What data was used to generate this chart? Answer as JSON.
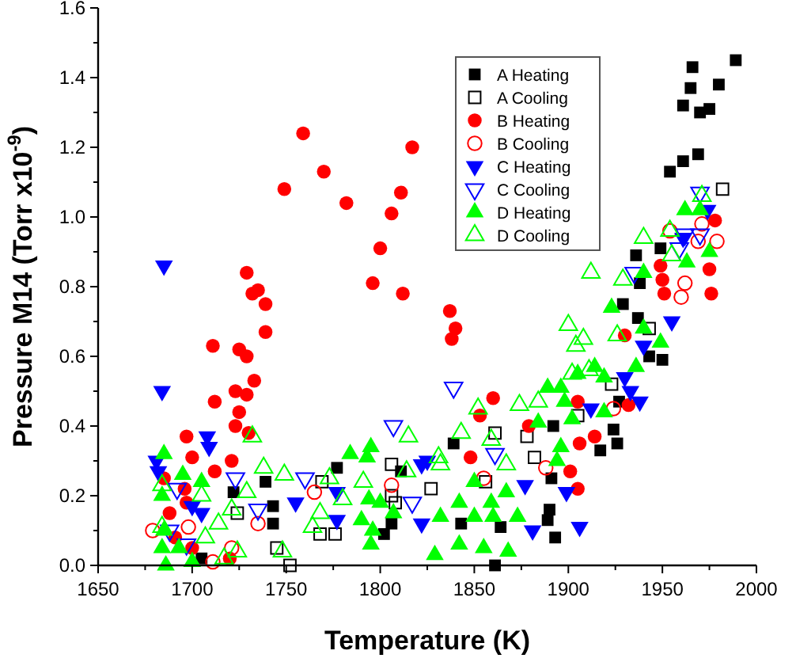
{
  "chart_data": {
    "type": "scatter",
    "xlabel": "Temperature (K)",
    "ylabel": "Pressure M14 (Torr x10$^{-9}$)",
    "xlim": [
      1650,
      2000
    ],
    "xticks": [
      1650,
      1700,
      1750,
      1800,
      1850,
      1900,
      1950,
      2000
    ],
    "ylim": [
      0,
      1.6
    ],
    "yticks": [
      {
        "value": 0,
        "label": "0.0"
      },
      {
        "value": 0.2,
        "label": "0.2"
      },
      {
        "value": 0.4,
        "label": "0.4"
      },
      {
        "value": 0.6,
        "label": "0.6"
      },
      {
        "value": 0.8,
        "label": "0.8"
      },
      {
        "value": 1.0,
        "label": "1.0"
      },
      {
        "value": 1.2,
        "label": "1.2"
      },
      {
        "value": 1.4,
        "label": "1.4"
      },
      {
        "value": 1.6,
        "label": "1.6"
      }
    ],
    "grid": false,
    "legend": "top right",
    "series": [
      {
        "name": "A Heating",
        "color": "#000000",
        "marker": "square",
        "x": [
          1989,
          1966,
          1980,
          1965,
          1961,
          1970,
          1975,
          1969,
          1961,
          1954,
          1949,
          1936,
          1938,
          1929,
          1937,
          1950,
          1943,
          1927,
          1924,
          1926,
          1917,
          1892,
          1891,
          1890,
          1889,
          1893,
          1861,
          1843,
          1839,
          1864,
          1777,
          1739,
          1722,
          1743,
          1743,
          1802,
          1806,
          1811,
          1705
        ],
        "values": [
          1.45,
          1.43,
          1.38,
          1.37,
          1.32,
          1.3,
          1.31,
          1.18,
          1.16,
          1.13,
          0.91,
          0.89,
          0.81,
          0.75,
          0.71,
          0.59,
          0.6,
          0.47,
          0.39,
          0.35,
          0.33,
          0.4,
          0.25,
          0.16,
          0.13,
          0.08,
          0.0,
          0.12,
          0.35,
          0.11,
          0.28,
          0.24,
          0.21,
          0.17,
          0.12,
          0.09,
          0.12,
          0.27,
          0.02
        ]
      },
      {
        "name": "A Cooling",
        "color": "#000000",
        "marker": "square-open",
        "x": [
          1982,
          1923,
          1943,
          1905,
          1861,
          1878,
          1882,
          1856,
          1827,
          1806,
          1808,
          1769,
          1768,
          1776,
          1724,
          1745,
          1752,
          1806
        ],
        "values": [
          1.08,
          0.52,
          0.68,
          0.43,
          0.38,
          0.37,
          0.31,
          0.24,
          0.22,
          0.29,
          0.18,
          0.24,
          0.09,
          0.09,
          0.15,
          0.05,
          0.0,
          0.2
        ]
      },
      {
        "name": "B Heating",
        "color": "#ff0000",
        "marker": "circle",
        "x": [
          1759,
          1817,
          1770,
          1749,
          1782,
          1811,
          1806,
          1800,
          1729,
          1735,
          1732,
          1739,
          1796,
          1812,
          1739,
          1711,
          1725,
          1729,
          1733,
          1712,
          1723,
          1729,
          1725,
          1723,
          1730,
          1697,
          1700,
          1721,
          1712,
          1696,
          1697,
          1837,
          1840,
          1838,
          1860,
          1853,
          1879,
          1905,
          1906,
          1901,
          1905,
          1848,
          1976,
          1951,
          1932,
          1914,
          1930,
          1978,
          1975,
          1949,
          1950,
          1685,
          1688,
          1691,
          1700,
          1720
        ],
        "values": [
          1.24,
          1.2,
          1.13,
          1.08,
          1.04,
          1.07,
          1.01,
          0.91,
          0.84,
          0.79,
          0.78,
          0.75,
          0.81,
          0.78,
          0.67,
          0.63,
          0.62,
          0.6,
          0.53,
          0.47,
          0.5,
          0.49,
          0.44,
          0.4,
          0.38,
          0.37,
          0.31,
          0.3,
          0.27,
          0.22,
          0.18,
          0.73,
          0.68,
          0.65,
          0.48,
          0.43,
          0.4,
          0.47,
          0.35,
          0.27,
          0.22,
          0.31,
          0.78,
          0.78,
          0.46,
          0.37,
          0.66,
          0.99,
          0.85,
          0.86,
          0.82,
          0.25,
          0.15,
          0.08,
          0.05,
          0.02
        ]
      },
      {
        "name": "B Cooling",
        "color": "#ff0000",
        "marker": "circle-open",
        "x": [
          1971,
          1979,
          1969,
          1962,
          1960,
          1954,
          1924,
          1888,
          1765,
          1735,
          1721,
          1711,
          1806,
          1698,
          1679,
          1855
        ],
        "values": [
          0.98,
          0.93,
          0.93,
          0.81,
          0.77,
          0.96,
          0.45,
          0.28,
          0.21,
          0.12,
          0.05,
          0.01,
          0.23,
          0.11,
          0.1,
          0.25
        ]
      },
      {
        "name": "C Heating",
        "color": "#0000ff",
        "marker": "triangle-down",
        "x": [
          1685,
          1684,
          1708,
          1709,
          1681,
          1682,
          1755,
          1777,
          1777,
          1822,
          1822,
          1705,
          1700,
          1881,
          1906,
          1899,
          1877,
          1938,
          1933,
          1930,
          1955,
          1940,
          1912,
          1825,
          1974,
          1961
        ],
        "values": [
          0.86,
          0.5,
          0.37,
          0.34,
          0.3,
          0.27,
          0.18,
          0.21,
          0.13,
          0.29,
          0.12,
          0.15,
          0.17,
          0.1,
          0.11,
          0.21,
          0.23,
          0.47,
          0.5,
          0.54,
          0.7,
          0.63,
          0.45,
          0.3,
          1.02,
          0.94
        ]
      },
      {
        "name": "C Cooling",
        "color": "#0000ff",
        "marker": "triangle-down-open",
        "x": [
          1839,
          1861,
          1807,
          1723,
          1760,
          1735,
          1817,
          1697,
          1970,
          1970,
          1959,
          1935,
          1962,
          1688,
          1692
        ],
        "values": [
          0.51,
          0.32,
          0.4,
          0.25,
          0.25,
          0.16,
          0.18,
          0.06,
          1.07,
          0.95,
          0.91,
          0.84,
          0.95,
          0.1,
          0.22
        ]
      },
      {
        "name": "D Heating",
        "color": "#00ff00",
        "marker": "triangle",
        "x": [
          1685,
          1784,
          1793,
          1795,
          1695,
          1705,
          1794,
          1800,
          1790,
          1796,
          1795,
          1829,
          1700,
          1693,
          1684,
          1807,
          1842,
          1855,
          1868,
          1832,
          1850,
          1860,
          1873,
          1867,
          1850,
          1842,
          1859,
          1894,
          1896,
          1902,
          1898,
          1896,
          1889,
          1905,
          1914,
          1919,
          1884,
          1923,
          1940,
          1949,
          1936,
          1919,
          1962,
          1970,
          1975,
          1963,
          1940,
          1685,
          1686,
          1684
        ],
        "values": [
          0.32,
          0.32,
          0.31,
          0.34,
          0.26,
          0.24,
          0.19,
          0.18,
          0.13,
          0.1,
          0.06,
          0.03,
          0.01,
          0.05,
          0.2,
          0.15,
          0.06,
          0.05,
          0.04,
          0.14,
          0.14,
          0.14,
          0.14,
          0.21,
          0.24,
          0.18,
          0.18,
          0.3,
          0.34,
          0.42,
          0.47,
          0.51,
          0.51,
          0.55,
          0.57,
          0.54,
          0.41,
          0.74,
          0.68,
          0.64,
          0.57,
          0.44,
          1.02,
          1.02,
          0.9,
          0.87,
          0.84,
          0.1,
          0.0,
          0.05
        ]
      },
      {
        "name": "D Cooling",
        "color": "#00ff00",
        "marker": "triangle-open",
        "x": [
          1912,
          1929,
          1940,
          1954,
          1971,
          1955,
          1900,
          1908,
          1904,
          1926,
          1874,
          1884,
          1852,
          1843,
          1859,
          1832,
          1867,
          1902,
          1911,
          1732,
          1738,
          1749,
          1773,
          1791,
          1815,
          1814,
          1729,
          1714,
          1721,
          1764,
          1768,
          1780,
          1748,
          1724,
          1717,
          1684,
          1684,
          1705,
          1707,
          1831
        ],
        "values": [
          0.84,
          0.82,
          0.94,
          0.96,
          1.06,
          0.89,
          0.69,
          0.65,
          0.63,
          0.66,
          0.46,
          0.47,
          0.45,
          0.38,
          0.36,
          0.29,
          0.29,
          0.55,
          0.56,
          0.37,
          0.28,
          0.26,
          0.25,
          0.24,
          0.37,
          0.27,
          0.21,
          0.12,
          0.16,
          0.11,
          0.15,
          0.19,
          0.04,
          0.04,
          0.02,
          0.23,
          0.11,
          0.2,
          0.08,
          0.31
        ]
      }
    ]
  }
}
